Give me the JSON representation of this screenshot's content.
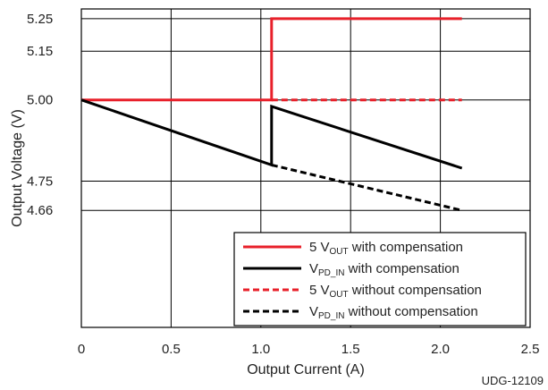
{
  "chart_data": {
    "type": "line",
    "xlabel": "Output Current (A)",
    "ylabel": "Output Voltage (V)",
    "xlim": [
      0,
      2.5
    ],
    "ylim": [
      4.3,
      5.28
    ],
    "x_ticks": [
      "0",
      "0.5",
      "1.0",
      "1.5",
      "2.0",
      "2.5"
    ],
    "x_tick_values": [
      0,
      0.5,
      1.0,
      1.5,
      2.0,
      2.5
    ],
    "y_ticks": [
      "5.25",
      "5.15",
      "5.00",
      "4.75",
      "4.66"
    ],
    "y_tick_values": [
      5.25,
      5.15,
      5.0,
      4.75,
      4.66
    ],
    "grid": true,
    "legend_position": "bottom-right",
    "series": [
      {
        "name": "5 V_OUT with compensation",
        "legend_main": "5 V",
        "legend_sub": "OUT",
        "legend_rest": " with compensation",
        "color": "#e8202a",
        "style": "solid",
        "x": [
          0,
          1.06,
          1.06,
          2.12
        ],
        "y": [
          5.0,
          5.0,
          5.25,
          5.25
        ]
      },
      {
        "name": "V_PD_IN with compensation",
        "legend_main": "V",
        "legend_sub": "PD_IN",
        "legend_rest": " with compensation",
        "color": "#000000",
        "style": "solid",
        "x": [
          0,
          1.06,
          1.06,
          2.12
        ],
        "y": [
          5.0,
          4.8,
          4.98,
          4.79
        ]
      },
      {
        "name": "5 V_OUT without compensation",
        "legend_main": "5 V",
        "legend_sub": "OUT",
        "legend_rest": " without compensation",
        "color": "#e8202a",
        "style": "dashed",
        "x": [
          1.06,
          2.12
        ],
        "y": [
          5.0,
          5.0
        ]
      },
      {
        "name": "V_PD_IN without compensation",
        "legend_main": "V",
        "legend_sub": "PD_IN",
        "legend_rest": " without compensation",
        "color": "#000000",
        "style": "dashed",
        "x": [
          1.06,
          2.12
        ],
        "y": [
          4.8,
          4.66
        ]
      }
    ],
    "figure_id": "UDG-12109"
  }
}
